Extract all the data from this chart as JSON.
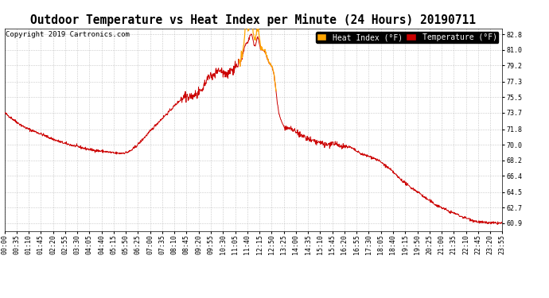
{
  "title": "Outdoor Temperature vs Heat Index per Minute (24 Hours) 20190711",
  "copyright": "Copyright 2019 Cartronics.com",
  "legend_heat_index": "Heat Index (°F)",
  "legend_temperature": "Temperature (°F)",
  "heat_index_color": "#FFA500",
  "temperature_color": "#CC0000",
  "background_color": "#ffffff",
  "grid_color": "#bbbbbb",
  "yticks": [
    60.9,
    62.7,
    64.5,
    66.4,
    68.2,
    70.0,
    71.8,
    73.7,
    75.5,
    77.3,
    79.2,
    81.0,
    82.8
  ],
  "ylim": [
    60.0,
    83.5
  ],
  "xtick_labels": [
    "00:00",
    "00:35",
    "01:10",
    "01:45",
    "02:20",
    "02:55",
    "03:30",
    "04:05",
    "04:40",
    "05:15",
    "05:50",
    "06:25",
    "07:00",
    "07:35",
    "08:10",
    "08:45",
    "09:20",
    "09:55",
    "10:30",
    "11:05",
    "11:40",
    "12:15",
    "12:50",
    "13:25",
    "14:00",
    "14:35",
    "15:10",
    "15:45",
    "16:20",
    "16:55",
    "17:30",
    "18:05",
    "18:40",
    "19:15",
    "19:50",
    "20:25",
    "21:00",
    "21:35",
    "22:10",
    "22:45",
    "23:20",
    "23:55"
  ],
  "title_fontsize": 10.5,
  "copyright_fontsize": 6.5,
  "tick_fontsize": 6.0,
  "legend_fontsize": 7.0
}
